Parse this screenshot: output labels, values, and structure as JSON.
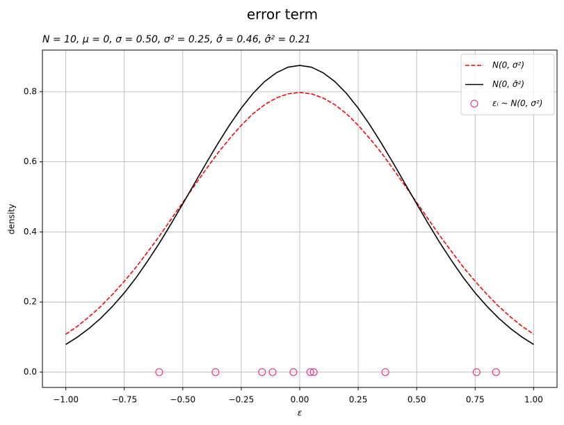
{
  "chart_data": {
    "type": "line",
    "title": "error term",
    "subtitle": "N = 10, μ = 0, σ = 0.50, σ² = 0.25, σ̂ = 0.46, σ̂² = 0.21",
    "xlabel": "ε",
    "ylabel": "density",
    "x": [
      -1,
      -0.95,
      -0.9,
      -0.85,
      -0.8,
      -0.75,
      -0.7,
      -0.65,
      -0.6,
      -0.55,
      -0.5,
      -0.45,
      -0.4,
      -0.35,
      -0.3,
      -0.25,
      -0.2,
      -0.15,
      -0.1,
      -0.05,
      0,
      0.05,
      0.1,
      0.15,
      0.2,
      0.25,
      0.3,
      0.35,
      0.4,
      0.45,
      0.5,
      0.55,
      0.6,
      0.65,
      0.7,
      0.75,
      0.8,
      0.85,
      0.9,
      0.95,
      1
    ],
    "series": [
      {
        "name": "N(0, σ²)",
        "color": "#ff0000",
        "style": "dashed",
        "values": [
          0.108,
          0.131,
          0.158,
          0.188,
          0.222,
          0.259,
          0.299,
          0.343,
          0.388,
          0.436,
          0.484,
          0.532,
          0.579,
          0.625,
          0.666,
          0.704,
          0.737,
          0.763,
          0.782,
          0.794,
          0.798,
          0.794,
          0.782,
          0.763,
          0.737,
          0.704,
          0.666,
          0.625,
          0.579,
          0.532,
          0.484,
          0.436,
          0.388,
          0.343,
          0.299,
          0.259,
          0.222,
          0.188,
          0.158,
          0.131,
          0.108
        ]
      },
      {
        "name": "N(0, σ̂²)",
        "color": "#000000",
        "style": "solid",
        "values": [
          0.079,
          0.1,
          0.125,
          0.154,
          0.188,
          0.226,
          0.269,
          0.317,
          0.368,
          0.423,
          0.48,
          0.538,
          0.596,
          0.652,
          0.705,
          0.753,
          0.795,
          0.829,
          0.854,
          0.87,
          0.875,
          0.87,
          0.854,
          0.829,
          0.795,
          0.753,
          0.705,
          0.652,
          0.596,
          0.538,
          0.48,
          0.423,
          0.368,
          0.317,
          0.269,
          0.226,
          0.188,
          0.154,
          0.125,
          0.1,
          0.079
        ]
      },
      {
        "name": "εᵢ ~ N(0, σ²)",
        "color": "#f0197d",
        "style": "markers",
        "x": [
          -0.601,
          -0.36,
          -0.161,
          -0.116,
          -0.027,
          0.045,
          0.06,
          0.366,
          0.756,
          0.839
        ],
        "values": [
          0,
          0,
          0,
          0,
          0,
          0,
          0,
          0,
          0,
          0
        ]
      }
    ],
    "xlim": [
      -1.1,
      1.1
    ],
    "ylim": [
      -0.04375,
      0.91875
    ],
    "xticks": [
      {
        "value": -1,
        "label": "−1.00"
      },
      {
        "value": -0.75,
        "label": "−0.75"
      },
      {
        "value": -0.5,
        "label": "−0.50"
      },
      {
        "value": -0.25,
        "label": "−0.25"
      },
      {
        "value": 0,
        "label": "0.00"
      },
      0.25,
      {
        "value": 0.5,
        "label": "0.50"
      },
      0.75,
      {
        "value": 1,
        "label": "1.00"
      }
    ],
    "yticks": [
      {
        "value": 0,
        "label": "0.0"
      },
      0.2,
      0.4,
      0.6,
      0.8
    ],
    "grid": true,
    "legend": "upper right"
  }
}
